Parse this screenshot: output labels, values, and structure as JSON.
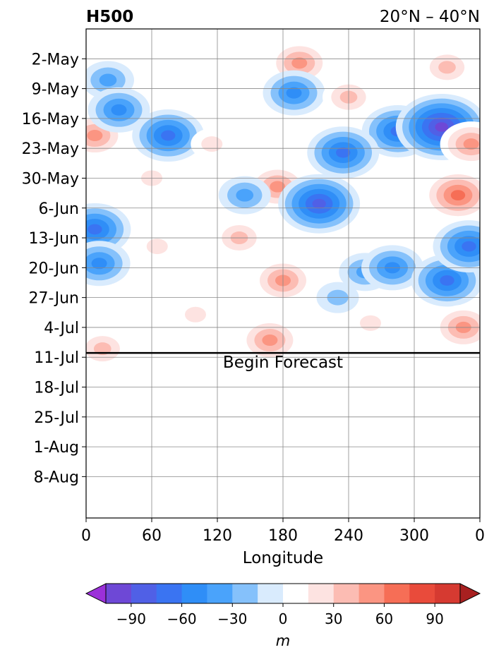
{
  "chart_data": {
    "type": "heatmap",
    "title_left": "H500",
    "title_right": "20°N – 40°N",
    "xlabel": "Longitude",
    "x_ticks": [
      "0",
      "60",
      "120",
      "180",
      "240",
      "300",
      "0"
    ],
    "x_tick_values": [
      0,
      60,
      120,
      180,
      240,
      300,
      360
    ],
    "xlim": [
      0,
      360
    ],
    "y_ticks": [
      "2-May",
      "9-May",
      "16-May",
      "23-May",
      "30-May",
      "6-Jun",
      "13-Jun",
      "20-Jun",
      "27-Jun",
      "4-Jul",
      "11-Jul",
      "18-Jul",
      "25-Jul",
      "1-Aug",
      "8-Aug"
    ],
    "y_range_days": [
      -7.0,
      107.7
    ],
    "y_range_note": "",
    "y_start_date": "",
    "forecast_start_day": 69,
    "annotation": "Begin Forecast",
    "grid": true,
    "colorbar": {
      "levels": [
        -105,
        -90,
        -75,
        -60,
        -45,
        -30,
        -15,
        0,
        15,
        30,
        45,
        60,
        75,
        90,
        105
      ],
      "tick_values": [
        -90,
        -60,
        -30,
        0,
        30,
        60,
        90
      ],
      "tick_labels": [
        "−90",
        "−60",
        "−30",
        "0",
        "30",
        "60",
        "90"
      ],
      "label": "m",
      "extend": "both",
      "colors": [
        "#9b30d9",
        "#6e48d6",
        "#5060e6",
        "#3a74f2",
        "#2f8ef7",
        "#4aa3fb",
        "#85c1fb",
        "#d9ebfd",
        "#ffffff",
        "#fde3e1",
        "#fcbcb3",
        "#fb9582",
        "#f66e56",
        "#e94b3b",
        "#d63a31",
        "#c02a27",
        "#a82020"
      ]
    },
    "anomalies": [
      {
        "lon": 195,
        "day": 1,
        "value": 50
      },
      {
        "lon": 330,
        "day": 2,
        "value": 40
      },
      {
        "lon": 20,
        "day": 5,
        "value": -40
      },
      {
        "lon": 190,
        "day": 8,
        "value": -50
      },
      {
        "lon": 240,
        "day": 9,
        "value": 45
      },
      {
        "lon": 8,
        "day": 18,
        "value": 60
      },
      {
        "lon": 30,
        "day": 12,
        "value": -50
      },
      {
        "lon": 75,
        "day": 18,
        "value": -65
      },
      {
        "lon": 115,
        "day": 20,
        "value": 25
      },
      {
        "lon": 285,
        "day": 17,
        "value": -70
      },
      {
        "lon": 325,
        "day": 16,
        "value": -100
      },
      {
        "lon": 352,
        "day": 20,
        "value": 50
      },
      {
        "lon": 235,
        "day": 22,
        "value": -70
      },
      {
        "lon": 175,
        "day": 30,
        "value": 55
      },
      {
        "lon": 213,
        "day": 34,
        "value": -90
      },
      {
        "lon": 145,
        "day": 32,
        "value": -35
      },
      {
        "lon": 340,
        "day": 32,
        "value": 70
      },
      {
        "lon": 60,
        "day": 28,
        "value": 20
      },
      {
        "lon": 8,
        "day": 40,
        "value": -70
      },
      {
        "lon": 12,
        "day": 48,
        "value": -60
      },
      {
        "lon": 65,
        "day": 44,
        "value": 25
      },
      {
        "lon": 140,
        "day": 42,
        "value": 35
      },
      {
        "lon": 180,
        "day": 52,
        "value": 50
      },
      {
        "lon": 255,
        "day": 50,
        "value": -45
      },
      {
        "lon": 280,
        "day": 49,
        "value": -60
      },
      {
        "lon": 330,
        "day": 52,
        "value": -65
      },
      {
        "lon": 350,
        "day": 44,
        "value": -70
      },
      {
        "lon": 15,
        "day": 68,
        "value": 40
      },
      {
        "lon": 100,
        "day": 60,
        "value": 20
      },
      {
        "lon": 168,
        "day": 66,
        "value": 60
      },
      {
        "lon": 260,
        "day": 62,
        "value": 25
      },
      {
        "lon": 345,
        "day": 63,
        "value": 50
      },
      {
        "lon": 230,
        "day": 56,
        "value": -25
      },
      {
        "lon": 40,
        "day": 84,
        "value": 12
      },
      {
        "lon": 170,
        "day": 80,
        "value": 10
      },
      {
        "lon": 300,
        "day": 80,
        "value": 12
      },
      {
        "lon": 352,
        "day": 77,
        "value": 15
      },
      {
        "lon": 215,
        "day": 105,
        "value": 12
      }
    ]
  }
}
